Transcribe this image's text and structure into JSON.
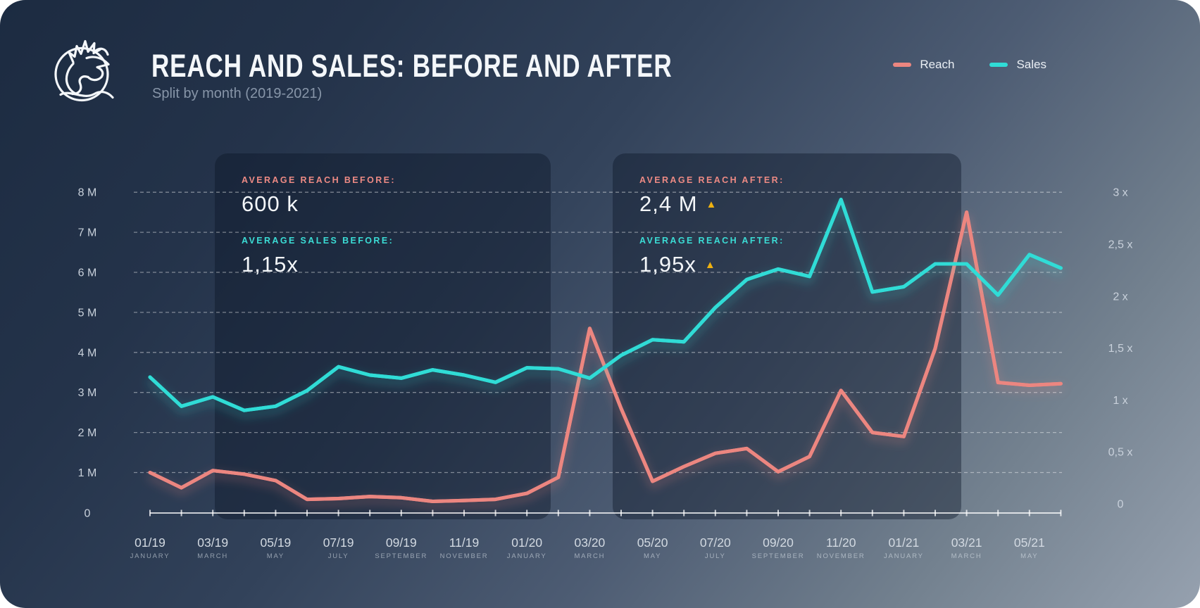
{
  "header": {
    "title": "REACH AND SALES: BEFORE AND AFTER",
    "subtitle": "Split by month (2019-2021)"
  },
  "legend": [
    {
      "label": "Reach",
      "color": "#ec8680"
    },
    {
      "label": "Sales",
      "color": "#30dcd6"
    }
  ],
  "icons": {
    "up_triangle": "▲",
    "up_triangle_color": "#eeb111",
    "logo": "dragon-logo"
  },
  "panels": [
    {
      "name": "before",
      "stats": [
        {
          "label": "AVERAGE REACH BEFORE:",
          "value": "600 k",
          "accent": "#ed8a84",
          "delta_up": false
        },
        {
          "label": "AVERAGE SALES BEFORE:",
          "value": "1,15x",
          "accent": "#3bdcd5",
          "delta_up": false
        }
      ]
    },
    {
      "name": "after",
      "stats": [
        {
          "label": "AVERAGE REACH AFTER:",
          "value": "2,4 M",
          "accent": "#ed8a84",
          "delta_up": true
        },
        {
          "label": "AVERAGE REACH AFTER:",
          "value": "1,95x",
          "accent": "#3bdcd5",
          "delta_up": true
        }
      ]
    }
  ],
  "chart_data": {
    "type": "line",
    "title": "Reach and Sales: Before and After",
    "x": [
      "01/19",
      "02/19",
      "03/19",
      "04/19",
      "05/19",
      "06/19",
      "07/19",
      "08/19",
      "09/19",
      "10/19",
      "11/19",
      "12/19",
      "01/20",
      "02/20",
      "03/20",
      "04/20",
      "05/20",
      "06/20",
      "07/20",
      "08/20",
      "09/20",
      "10/20",
      "11/20",
      "12/20",
      "01/21",
      "02/21",
      "03/21",
      "04/21",
      "05/21",
      "06/21"
    ],
    "x_tick_labels": [
      {
        "top": "01/19",
        "bottom": "JANUARY"
      },
      {
        "top": "03/19",
        "bottom": "MARCH"
      },
      {
        "top": "05/19",
        "bottom": "MAY"
      },
      {
        "top": "07/19",
        "bottom": "JULY"
      },
      {
        "top": "09/19",
        "bottom": "SEPTEMBER"
      },
      {
        "top": "11/19",
        "bottom": "NOVEMBER"
      },
      {
        "top": "01/20",
        "bottom": "JANUARY"
      },
      {
        "top": "03/20",
        "bottom": "MARCH"
      },
      {
        "top": "05/20",
        "bottom": "MAY"
      },
      {
        "top": "07/20",
        "bottom": "JULY"
      },
      {
        "top": "09/20",
        "bottom": "SEPTEMBER"
      },
      {
        "top": "11/20",
        "bottom": "NOVEMBER"
      },
      {
        "top": "01/21",
        "bottom": "JANUARY"
      },
      {
        "top": "03/21",
        "bottom": "MARCH"
      },
      {
        "top": "05/21",
        "bottom": "MAY"
      }
    ],
    "series": [
      {
        "name": "Reach",
        "axis": "left",
        "unit": "M",
        "color": "#ec8680",
        "values": [
          1.0,
          0.62,
          1.05,
          0.96,
          0.8,
          0.33,
          0.35,
          0.4,
          0.37,
          0.28,
          0.3,
          0.33,
          0.48,
          0.88,
          4.6,
          2.6,
          0.78,
          1.15,
          1.48,
          1.6,
          1.02,
          1.4,
          3.05,
          2.0,
          1.9,
          4.1,
          7.5,
          3.25,
          3.18,
          3.22
        ]
      },
      {
        "name": "Sales",
        "axis": "right",
        "unit": "x",
        "color": "#30dcd6",
        "values": [
          1.22,
          0.94,
          1.03,
          0.9,
          0.94,
          1.09,
          1.32,
          1.24,
          1.21,
          1.29,
          1.24,
          1.17,
          1.31,
          1.3,
          1.21,
          1.43,
          1.58,
          1.56,
          1.89,
          2.16,
          2.26,
          2.19,
          2.93,
          2.04,
          2.09,
          2.31,
          2.31,
          2.01,
          2.4,
          2.27
        ]
      }
    ],
    "y_axis_left": {
      "ticks": [
        "0",
        "1 M",
        "2 M",
        "3 M",
        "4 M",
        "5 M",
        "6 M",
        "7 M",
        "8 M"
      ],
      "min": 0,
      "max": 8
    },
    "y_axis_right": {
      "ticks": [
        "0",
        "0,5 x",
        "1 x",
        "1,5 x",
        "2 x",
        "2,5 x",
        "3 x"
      ],
      "min": 0,
      "max": 3
    },
    "grid": "horizontal-dashed",
    "legend_position": "top-right"
  }
}
